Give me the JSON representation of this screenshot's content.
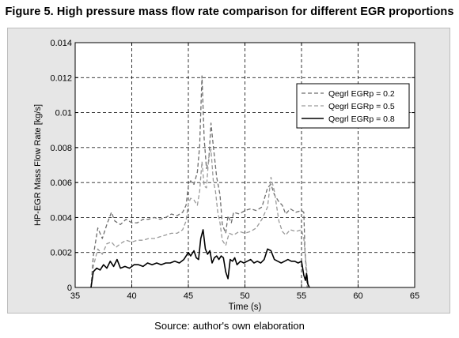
{
  "figure": {
    "title": "Figure 5. High pressure mass flow rate comparison for different EGR proportions",
    "source": "Source: author's own elaboration"
  },
  "chart_data": {
    "type": "line",
    "xlabel": "Time (s)",
    "ylabel": "HP-EGR Mass Flow Rate [kg/s]",
    "xlim": [
      35,
      65
    ],
    "ylim": [
      0,
      0.014
    ],
    "xticks": [
      35,
      40,
      45,
      50,
      55,
      60,
      65
    ],
    "yticks": [
      0,
      0.002,
      0.004,
      0.006,
      0.008,
      0.01,
      0.012,
      0.014
    ],
    "ytick_labels": [
      "0",
      "0.002",
      "0.004",
      "0.006",
      "0.008",
      "0.01",
      "0.012",
      "0.014"
    ],
    "grid": true,
    "legend_position": "top-right",
    "series": [
      {
        "name": "Qegrl EGRp = 0.2",
        "style": "dashed",
        "color": "#6e6e6e",
        "x": [
          36.4,
          36.6,
          37.0,
          37.4,
          37.8,
          38.2,
          38.5,
          39.0,
          39.5,
          40.0,
          40.5,
          41.0,
          41.5,
          42.0,
          42.5,
          43.0,
          43.5,
          44.0,
          44.5,
          44.8,
          45.0,
          45.2,
          45.5,
          45.8,
          46.0,
          46.2,
          46.4,
          46.6,
          46.8,
          47.0,
          47.2,
          47.5,
          47.8,
          48.0,
          48.3,
          48.5,
          48.8,
          49.0,
          49.5,
          50.0,
          50.5,
          51.0,
          51.5,
          52.0,
          52.3,
          52.6,
          53.0,
          53.3,
          53.6,
          54.0,
          54.5,
          55.0,
          55.2,
          55.3,
          55.5
        ],
        "y": [
          0.0,
          0.0018,
          0.0034,
          0.0028,
          0.0036,
          0.0043,
          0.0038,
          0.0036,
          0.0039,
          0.0037,
          0.0037,
          0.0039,
          0.0039,
          0.004,
          0.0039,
          0.004,
          0.0042,
          0.0041,
          0.0043,
          0.0047,
          0.0058,
          0.0061,
          0.0059,
          0.0066,
          0.0081,
          0.0121,
          0.0085,
          0.0068,
          0.0072,
          0.0094,
          0.0081,
          0.0063,
          0.0053,
          0.0036,
          0.0031,
          0.0041,
          0.0037,
          0.0043,
          0.0042,
          0.0044,
          0.0045,
          0.0044,
          0.0046,
          0.0057,
          0.0059,
          0.0053,
          0.0049,
          0.0047,
          0.0042,
          0.0045,
          0.0043,
          0.0044,
          0.0043,
          0.0022,
          0.0
        ]
      },
      {
        "name": "Qegrl EGRp = 0.5",
        "style": "dashed",
        "color": "#9a9a9a",
        "x": [
          36.4,
          36.6,
          37.0,
          37.4,
          37.8,
          38.2,
          38.6,
          39.0,
          39.5,
          40.0,
          40.5,
          41.0,
          41.5,
          42.0,
          42.5,
          43.0,
          43.5,
          44.0,
          44.5,
          44.8,
          45.0,
          45.2,
          45.5,
          45.8,
          46.0,
          46.2,
          46.4,
          46.6,
          46.8,
          47.0,
          47.2,
          47.4,
          47.6,
          47.8,
          48.0,
          48.3,
          48.6,
          49.0,
          49.5,
          50.0,
          50.5,
          51.0,
          51.5,
          52.0,
          52.3,
          52.6,
          53.0,
          53.3,
          53.6,
          54.0,
          54.5,
          55.0,
          55.2,
          55.4,
          55.6
        ],
        "y": [
          0.0,
          0.0012,
          0.0022,
          0.0019,
          0.0025,
          0.0026,
          0.0023,
          0.0025,
          0.0027,
          0.0026,
          0.0027,
          0.0027,
          0.0028,
          0.0028,
          0.0029,
          0.003,
          0.0031,
          0.0031,
          0.0033,
          0.0038,
          0.0048,
          0.0051,
          0.005,
          0.0047,
          0.0055,
          0.0072,
          0.0058,
          0.0057,
          0.0074,
          0.0079,
          0.0061,
          0.0055,
          0.0043,
          0.0037,
          0.0027,
          0.0024,
          0.0031,
          0.003,
          0.0032,
          0.0031,
          0.0032,
          0.0034,
          0.0039,
          0.0046,
          0.0063,
          0.0055,
          0.0038,
          0.0032,
          0.003,
          0.0033,
          0.0032,
          0.0033,
          0.0028,
          0.0014,
          0.0
        ]
      },
      {
        "name": "Qegrl EGRp = 0.8",
        "style": "solid",
        "color": "#000000",
        "x": [
          36.4,
          36.6,
          36.9,
          37.2,
          37.5,
          37.8,
          38.1,
          38.4,
          38.7,
          39.0,
          39.4,
          39.8,
          40.2,
          40.6,
          41.0,
          41.4,
          41.8,
          42.2,
          42.6,
          43.0,
          43.4,
          43.8,
          44.2,
          44.6,
          45.0,
          45.2,
          45.5,
          45.7,
          45.9,
          46.1,
          46.3,
          46.5,
          46.7,
          46.9,
          47.1,
          47.3,
          47.5,
          47.7,
          47.9,
          48.1,
          48.3,
          48.5,
          48.7,
          48.9,
          49.1,
          49.3,
          49.6,
          49.9,
          50.2,
          50.5,
          50.8,
          51.1,
          51.4,
          51.7,
          52.0,
          52.3,
          52.6,
          52.9,
          53.2,
          53.5,
          53.8,
          54.1,
          54.4,
          54.7,
          55.0,
          55.2,
          55.35,
          55.45,
          55.55,
          55.7
        ],
        "y": [
          0.0,
          0.0009,
          0.0011,
          0.001,
          0.0013,
          0.0011,
          0.0015,
          0.0012,
          0.0016,
          0.0011,
          0.0012,
          0.0011,
          0.0013,
          0.0013,
          0.0012,
          0.0014,
          0.0013,
          0.0014,
          0.0013,
          0.0014,
          0.0014,
          0.0015,
          0.0014,
          0.0016,
          0.002,
          0.0018,
          0.0021,
          0.0017,
          0.0016,
          0.0028,
          0.0033,
          0.0022,
          0.0019,
          0.0021,
          0.0014,
          0.0017,
          0.0018,
          0.0016,
          0.0018,
          0.0017,
          0.0009,
          0.0005,
          0.0016,
          0.0015,
          0.0017,
          0.0013,
          0.0015,
          0.0014,
          0.0015,
          0.0016,
          0.0014,
          0.0015,
          0.0014,
          0.0016,
          0.0022,
          0.0021,
          0.0016,
          0.0015,
          0.0014,
          0.0015,
          0.0016,
          0.0015,
          0.0015,
          0.0014,
          0.0015,
          0.0007,
          0.0004,
          0.0008,
          0.0002,
          0.0
        ]
      }
    ]
  }
}
